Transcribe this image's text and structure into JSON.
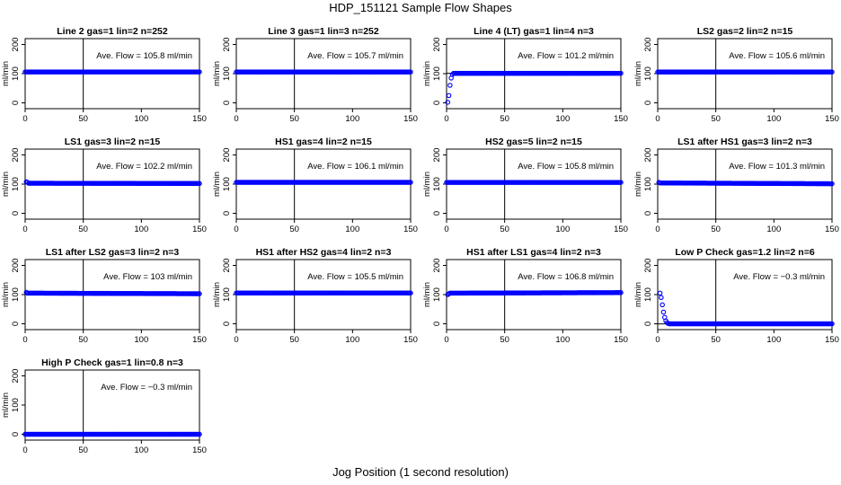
{
  "figure": {
    "title": "HDP_151121  Sample Flow Shapes",
    "xlabel": "Jog Position (1 second resolution)"
  },
  "chart_data": [
    {
      "type": "scatter",
      "title": "Line 2 gas=1 lin=2 n=252",
      "ylabel": "ml/min",
      "xlim": [
        0,
        150
      ],
      "ylim": [
        -20,
        220
      ],
      "xticks": [
        0,
        50,
        100,
        150
      ],
      "yticks": [
        0,
        100,
        200
      ],
      "vline": 50,
      "hline": 105.8,
      "annotation": "Ave. Flow = 105.8  ml/min",
      "series": [
        {
          "points": [
            [
              0,
              105.8
            ],
            [
              150,
              105.8
            ]
          ]
        }
      ]
    },
    {
      "type": "scatter",
      "title": "Line 3 gas=1 lin=3 n=252",
      "ylabel": "ml/min",
      "xlim": [
        0,
        150
      ],
      "ylim": [
        -20,
        220
      ],
      "xticks": [
        0,
        50,
        100,
        150
      ],
      "yticks": [
        0,
        100,
        200
      ],
      "vline": 50,
      "hline": 105.7,
      "annotation": "Ave. Flow = 105.7  ml/min",
      "series": [
        {
          "points": [
            [
              0,
              105.7
            ],
            [
              150,
              105.7
            ]
          ]
        }
      ]
    },
    {
      "type": "scatter",
      "title": "Line 4 (LT) gas=1 lin=4 n=3",
      "ylabel": "ml/min",
      "xlim": [
        0,
        150
      ],
      "ylim": [
        -20,
        220
      ],
      "xticks": [
        0,
        50,
        100,
        150
      ],
      "yticks": [
        0,
        100,
        200
      ],
      "vline": 50,
      "hline": 101.2,
      "annotation": "Ave. Flow = 101.2  ml/min",
      "series": [
        {
          "points": [
            [
              1,
              2
            ],
            [
              2,
              25
            ],
            [
              3,
              60
            ],
            [
              4,
              85
            ],
            [
              5,
              97
            ],
            [
              6,
              101
            ],
            [
              150,
              101.2
            ]
          ]
        }
      ]
    },
    {
      "type": "scatter",
      "title": "LS2 gas=2 lin=2 n=15",
      "ylabel": "ml/min",
      "xlim": [
        0,
        150
      ],
      "ylim": [
        -20,
        220
      ],
      "xticks": [
        0,
        50,
        100,
        150
      ],
      "yticks": [
        0,
        100,
        200
      ],
      "vline": 50,
      "hline": 105.6,
      "annotation": "Ave. Flow = 105.6  ml/min",
      "series": [
        {
          "points": [
            [
              0,
              105.6
            ],
            [
              150,
              105.6
            ]
          ]
        }
      ]
    },
    {
      "type": "scatter",
      "title": "LS1 gas=3 lin=2 n=15",
      "ylabel": "ml/min",
      "xlim": [
        0,
        150
      ],
      "ylim": [
        -20,
        220
      ],
      "xticks": [
        0,
        50,
        100,
        150
      ],
      "yticks": [
        0,
        100,
        200
      ],
      "vline": 50,
      "hline": 102.2,
      "annotation": "Ave. Flow = 102.2  ml/min",
      "series": [
        {
          "points": [
            [
              1,
              108
            ],
            [
              2,
              106
            ],
            [
              3,
              103
            ],
            [
              150,
              102.2
            ]
          ]
        }
      ]
    },
    {
      "type": "scatter",
      "title": "HS1 gas=4 lin=2 n=15",
      "ylabel": "ml/min",
      "xlim": [
        0,
        150
      ],
      "ylim": [
        -20,
        220
      ],
      "xticks": [
        0,
        50,
        100,
        150
      ],
      "yticks": [
        0,
        100,
        200
      ],
      "vline": 50,
      "hline": 106.1,
      "annotation": "Ave. Flow = 106.1  ml/min",
      "series": [
        {
          "points": [
            [
              0,
              106.1
            ],
            [
              150,
              106.1
            ]
          ]
        }
      ]
    },
    {
      "type": "scatter",
      "title": "HS2 gas=5 lin=2 n=15",
      "ylabel": "ml/min",
      "xlim": [
        0,
        150
      ],
      "ylim": [
        -20,
        220
      ],
      "xticks": [
        0,
        50,
        100,
        150
      ],
      "yticks": [
        0,
        100,
        200
      ],
      "vline": 50,
      "hline": 105.8,
      "annotation": "Ave. Flow = 105.8  ml/min",
      "series": [
        {
          "points": [
            [
              0,
              105.8
            ],
            [
              150,
              105.8
            ]
          ]
        }
      ]
    },
    {
      "type": "scatter",
      "title": "LS1 after HS1 gas=3 lin=2 n=3",
      "ylabel": "ml/min",
      "xlim": [
        0,
        150
      ],
      "ylim": [
        -20,
        220
      ],
      "xticks": [
        0,
        50,
        100,
        150
      ],
      "yticks": [
        0,
        100,
        200
      ],
      "vline": 50,
      "hline": 101.3,
      "annotation": "Ave. Flow = 101.3  ml/min",
      "series": [
        {
          "points": [
            [
              1,
              106
            ],
            [
              2,
              104
            ],
            [
              150,
              101.3
            ]
          ]
        }
      ]
    },
    {
      "type": "scatter",
      "title": "LS1 after LS2 gas=3 lin=2 n=3",
      "ylabel": "ml/min",
      "xlim": [
        0,
        150
      ],
      "ylim": [
        -20,
        220
      ],
      "xticks": [
        0,
        50,
        100,
        150
      ],
      "yticks": [
        0,
        100,
        200
      ],
      "vline": 50,
      "hline": 103,
      "annotation": "Ave. Flow = 103  ml/min",
      "series": [
        {
          "points": [
            [
              1,
              108
            ],
            [
              2,
              105
            ],
            [
              150,
              103
            ]
          ]
        }
      ]
    },
    {
      "type": "scatter",
      "title": "HS1 after HS2 gas=4 lin=2 n=3",
      "ylabel": "ml/min",
      "xlim": [
        0,
        150
      ],
      "ylim": [
        -20,
        220
      ],
      "xticks": [
        0,
        50,
        100,
        150
      ],
      "yticks": [
        0,
        100,
        200
      ],
      "vline": 50,
      "hline": 105.5,
      "annotation": "Ave. Flow = 105.5  ml/min",
      "series": [
        {
          "points": [
            [
              0,
              105.5
            ],
            [
              150,
              105.5
            ]
          ]
        }
      ]
    },
    {
      "type": "scatter",
      "title": "HS1 after LS1 gas=4 lin=2 n=3",
      "ylabel": "ml/min",
      "xlim": [
        0,
        150
      ],
      "ylim": [
        -20,
        220
      ],
      "xticks": [
        0,
        50,
        100,
        150
      ],
      "yticks": [
        0,
        100,
        200
      ],
      "vline": 50,
      "hline": 106.8,
      "annotation": "Ave. Flow = 106.8  ml/min",
      "series": [
        {
          "points": [
            [
              1,
              100
            ],
            [
              2,
              103
            ],
            [
              3,
              105
            ],
            [
              150,
              106.8
            ]
          ]
        }
      ]
    },
    {
      "type": "scatter",
      "title": "Low P Check gas=1.2 lin=2 n=6",
      "ylabel": "ml/min",
      "xlim": [
        0,
        150
      ],
      "ylim": [
        -20,
        220
      ],
      "xticks": [
        0,
        50,
        100,
        150
      ],
      "yticks": [
        0,
        100,
        200
      ],
      "vline": 50,
      "hline": -0.3,
      "annotation": "Ave. Flow = −0.3  ml/min",
      "series": [
        {
          "points": [
            [
              2,
              105
            ],
            [
              3,
              90
            ],
            [
              4,
              65
            ],
            [
              5,
              40
            ],
            [
              6,
              22
            ],
            [
              7,
              10
            ],
            [
              8,
              4
            ],
            [
              9,
              1
            ],
            [
              10,
              0
            ],
            [
              150,
              0
            ]
          ]
        }
      ]
    },
    {
      "type": "scatter",
      "title": "High P Check gas=1 lin=0.8 n=3",
      "ylabel": "ml/min",
      "xlim": [
        0,
        150
      ],
      "ylim": [
        -20,
        220
      ],
      "xticks": [
        0,
        50,
        100,
        150
      ],
      "yticks": [
        0,
        100,
        200
      ],
      "vline": 50,
      "hline": -0.3,
      "annotation": "Ave. Flow = −0.3  ml/min",
      "series": [
        {
          "points": [
            [
              0,
              0
            ],
            [
              150,
              0
            ]
          ]
        }
      ]
    }
  ],
  "style": {
    "point_color": "#0000ff",
    "axis_color": "#000000",
    "background": "#ffffff"
  }
}
